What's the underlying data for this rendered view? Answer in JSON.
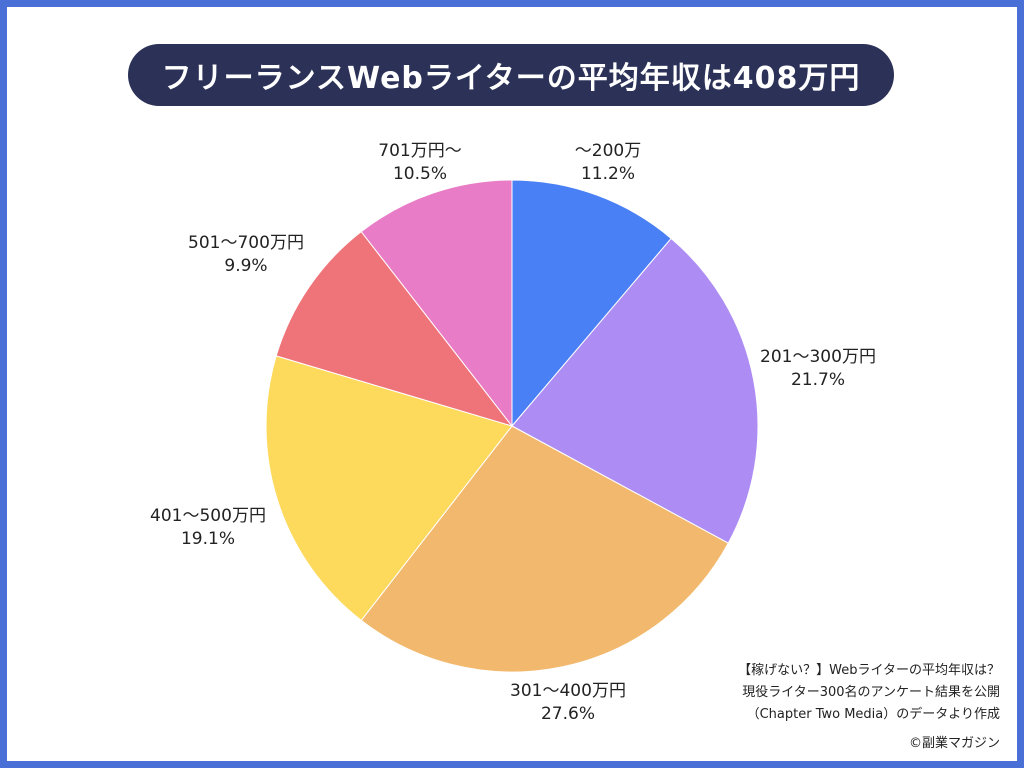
{
  "title": "フリーランスWebライターの平均年収は408万円",
  "chart_data": {
    "type": "pie",
    "categories": [
      "〜200万",
      "201〜300万円",
      "301〜400万円",
      "401〜500万円",
      "501〜700万円",
      "701万円〜"
    ],
    "values": [
      11.2,
      21.7,
      27.6,
      19.1,
      9.9,
      10.5
    ],
    "value_labels": [
      "11.2%",
      "21.7%",
      "27.6%",
      "19.1%",
      "9.9%",
      "10.5%"
    ],
    "colors": [
      "#4a80f5",
      "#ad8df3",
      "#f2b96e",
      "#fdd95c",
      "#ef7479",
      "#e87cc6"
    ],
    "start": "12 o'clock",
    "direction": "clockwise"
  },
  "source": {
    "line1": "【稼げない？】Webライターの平均年収は？",
    "line2": "現役ライター300名のアンケート結果を公開",
    "line3": "（Chapter Two Media）のデータより作成"
  },
  "copyright": "©副業マガジン"
}
